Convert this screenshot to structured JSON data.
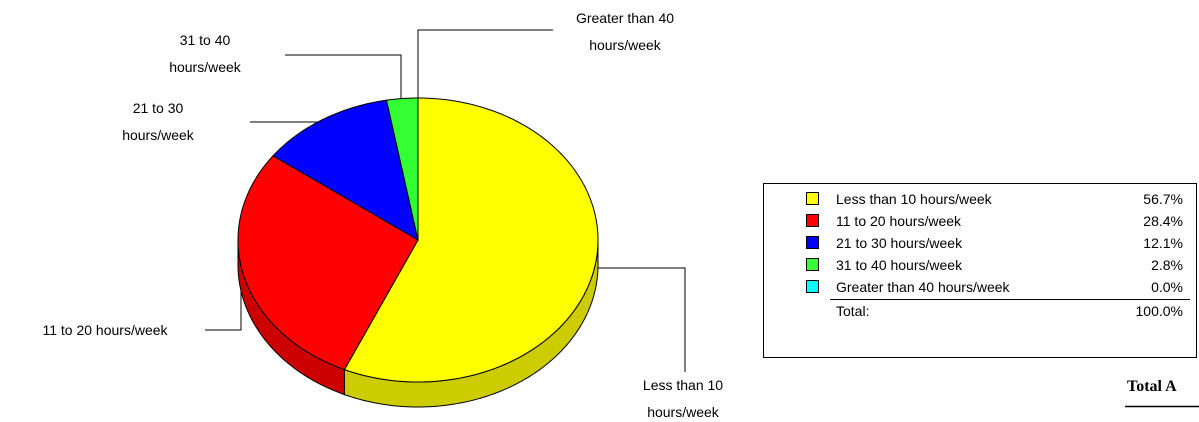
{
  "chart_data": {
    "type": "pie3d",
    "categories": [
      "Less than 10 hours/week",
      "11 to 20 hours/week",
      "21 to 30 hours/week",
      "31 to 40 hours/week",
      "Greater than 40 hours/week"
    ],
    "values": [
      56.7,
      28.4,
      12.1,
      2.8,
      0.0
    ],
    "value_labels": [
      "56.7%",
      "28.4%",
      "12.1%",
      "2.8%",
      "0.0%"
    ],
    "colors": [
      "#ffff00",
      "#ff0000",
      "#0000ff",
      "#33ff33",
      "#00ffff"
    ],
    "legend": "right",
    "total": {
      "label": "Total:",
      "value": 100.0,
      "value_label": "100.0%"
    },
    "footer": "Total A"
  }
}
